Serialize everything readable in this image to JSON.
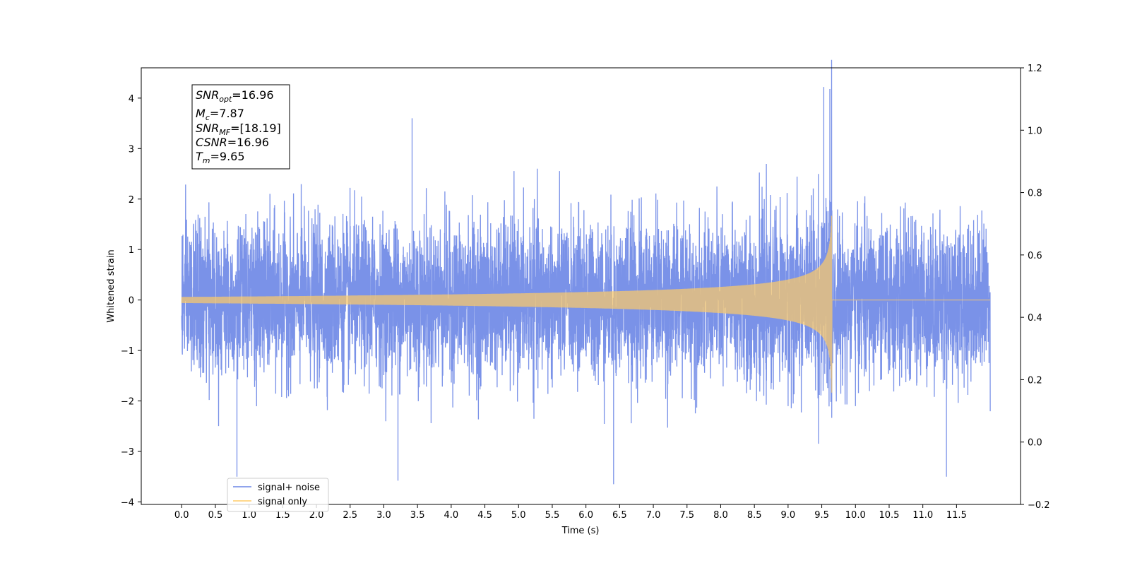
{
  "chart_data": {
    "type": "line",
    "title": "",
    "xlabel": "Time (s)",
    "ylabel": "Whitened strain",
    "xlim": [
      -0.6,
      12.45
    ],
    "ylim": [
      -4.05,
      4.6
    ],
    "y2lim": [
      -0.2,
      1.2
    ],
    "xticks": [
      "0.0",
      "0.5",
      "1.0",
      "1.5",
      "2.0",
      "2.5",
      "3.0",
      "3.5",
      "4.0",
      "4.5",
      "5.0",
      "5.5",
      "6.0",
      "6.5",
      "7.0",
      "7.5",
      "8.0",
      "8.5",
      "9.0",
      "9.5",
      "10.0",
      "10.5",
      "11.0",
      "11.5"
    ],
    "yticks": [
      "−4",
      "−3",
      "−2",
      "−1",
      "0",
      "1",
      "2",
      "3",
      "4"
    ],
    "y2ticks": [
      "−0.2",
      "0.0",
      "0.2",
      "0.4",
      "0.6",
      "0.8",
      "1.0",
      "1.2"
    ],
    "grid": false,
    "legend_position": "lower-left",
    "series": [
      {
        "name": "signal+ noise",
        "color": "#6b86e6",
        "duration_s": 12.0,
        "typical_std": 0.75,
        "max_value": 4.22,
        "min_value": -3.65,
        "notable_peaks": [
          {
            "t": 9.53,
            "v": 4.22
          },
          {
            "t": 9.62,
            "v": 4.18
          },
          {
            "t": 3.42,
            "v": 3.6
          },
          {
            "t": 6.41,
            "v": -3.65
          },
          {
            "t": 3.21,
            "v": -3.58
          },
          {
            "t": 0.82,
            "v": -3.5
          },
          {
            "t": 11.35,
            "v": -3.5
          }
        ]
      },
      {
        "name": "signal only",
        "color": "#ffcc66",
        "waveform": "chirp",
        "start_amplitude": 0.06,
        "peak_amplitude": 2.0,
        "merger_time": 9.65,
        "post_merger_value": 0.0
      }
    ],
    "annotation": {
      "lines": [
        {
          "symbol": "SNR",
          "sub": "opt",
          "value": "=16.96"
        },
        {
          "symbol": "M",
          "sub": "c",
          "value": "=7.87"
        },
        {
          "symbol": "SNR",
          "sub": "MF",
          "value": "=[18.19]"
        },
        {
          "symbol": "CSNR",
          "sub": "",
          "value": "=16.96"
        },
        {
          "symbol": "T",
          "sub": "m",
          "value": "=9.65"
        }
      ]
    }
  }
}
